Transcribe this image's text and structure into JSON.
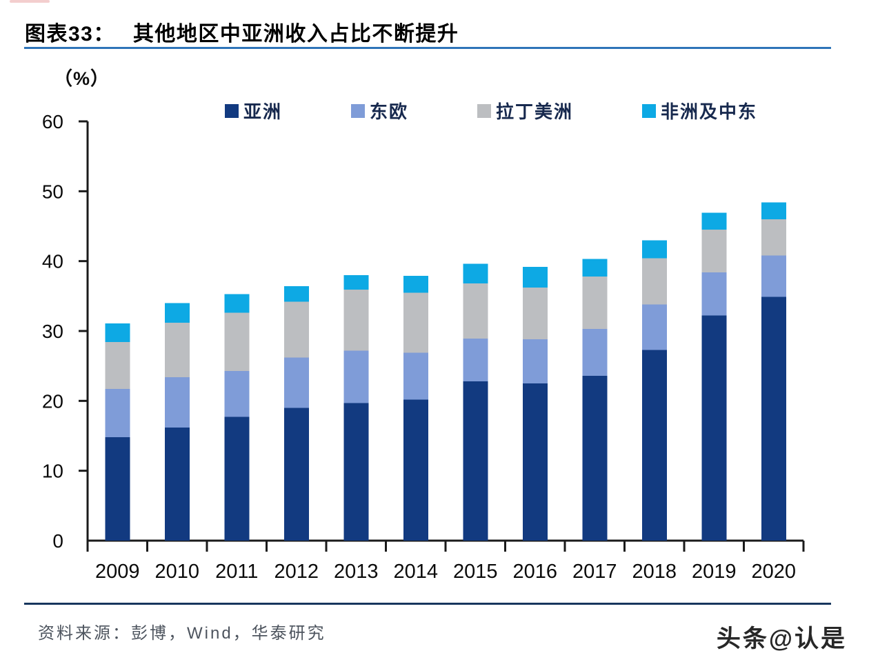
{
  "page": {
    "title_tag": "图表33：",
    "title_text": "其他地区中亚洲收入占比不断提升",
    "unit_label": "（%）",
    "source_text": "资料来源：彭博，Wind，华泰研究",
    "watermark_text": "头条@认是"
  },
  "colors": {
    "title_rule_blue": "#2e74b8",
    "bottom_rule_navy": "#17365d",
    "axis_black": "#1a1a1a",
    "asia_navy": "#123a80",
    "east_europe_blue": "#7f9cd8",
    "latam_gray": "#bcbec1",
    "africa_me_cyan": "#0da9e4"
  },
  "chart_data": {
    "type": "bar",
    "stacked": true,
    "title": "其他地区中亚洲收入占比不断提升",
    "unit": "%",
    "categories": [
      "2009",
      "2010",
      "2011",
      "2012",
      "2013",
      "2014",
      "2015",
      "2016",
      "2017",
      "2018",
      "2019",
      "2020"
    ],
    "series": [
      {
        "name": "亚洲",
        "color": "#123a80",
        "values": [
          14.8,
          16.2,
          17.7,
          19.0,
          19.7,
          20.2,
          22.8,
          22.5,
          23.6,
          27.3,
          32.2,
          34.9
        ]
      },
      {
        "name": "东欧",
        "color": "#7f9cd8",
        "values": [
          6.9,
          7.2,
          6.6,
          7.2,
          7.5,
          6.7,
          6.1,
          6.3,
          6.7,
          6.5,
          6.2,
          5.9
        ]
      },
      {
        "name": "拉丁美洲",
        "color": "#bcbec1",
        "values": [
          6.7,
          7.8,
          8.3,
          8.0,
          8.7,
          8.6,
          7.9,
          7.4,
          7.5,
          6.6,
          6.1,
          5.2
        ]
      },
      {
        "name": "非洲及中东",
        "color": "#0da9e4",
        "values": [
          2.7,
          2.8,
          2.7,
          2.2,
          2.1,
          2.4,
          2.8,
          3.0,
          2.5,
          2.6,
          2.4,
          2.4
        ]
      }
    ],
    "totals": [
      31.1,
      34.0,
      35.3,
      36.4,
      38.0,
      37.9,
      39.6,
      39.2,
      40.3,
      43.0,
      46.9,
      48.4
    ],
    "ylim": [
      0,
      60
    ],
    "yticks": [
      0,
      10,
      20,
      30,
      40,
      50,
      60
    ],
    "legend_position": "top",
    "grid": false
  }
}
